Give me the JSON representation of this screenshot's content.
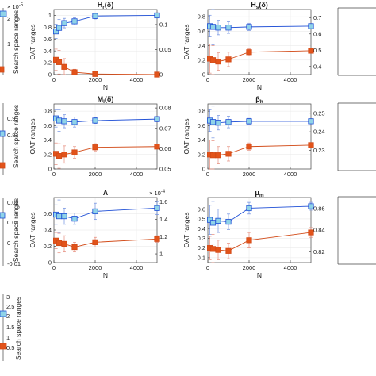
{
  "colors": {
    "oat": "#1f4fd6",
    "oat_fill": "#8fd3e8",
    "ss": "#d24a17",
    "ss_fill": "#e2531a",
    "err_oat": "#6f8fe0",
    "err_ss": "#e58a7a"
  },
  "chart_data": [
    {
      "type": "line",
      "title": "H$_r$(δ)",
      "title_main": "H",
      "title_sub": "r",
      "title_tail": "(δ)",
      "xlabel": "N",
      "ylabel": "OAT ranges",
      "y2label": "Search space ranges",
      "x": [
        100,
        250,
        500,
        1000,
        2000,
        5000
      ],
      "xticks": [
        "0",
        "2000",
        "4000"
      ],
      "xlim": [
        0,
        5000
      ],
      "ylim": [
        0,
        1.1
      ],
      "yticks": [
        "0",
        "0.2",
        "0.4",
        "0.6",
        "0.8",
        "1"
      ],
      "y2lim": [
        0,
        0.13
      ],
      "y2ticks": [
        "0",
        "0.05",
        "0.1"
      ],
      "series": [
        {
          "axis": "left",
          "values": [
            0.73,
            0.79,
            0.87,
            0.9,
            0.99,
            1.0
          ],
          "err": [
            0.12,
            0.14,
            0.08,
            0.06,
            0.05,
            0.02
          ]
        },
        {
          "axis": "left",
          "values": [
            0.25,
            0.21,
            0.13,
            0.04,
            0.01,
            0.0
          ],
          "err": [
            0.18,
            0.2,
            0.14,
            0.05,
            0.02,
            0.01
          ]
        }
      ]
    },
    {
      "type": "line",
      "title_main": "H",
      "title_sub": "s",
      "title_tail": "(δ)",
      "xlabel": "N",
      "ylabel": "OAT ranges",
      "y2label": "",
      "x": [
        100,
        250,
        500,
        1000,
        2000,
        5000
      ],
      "xticks": [
        "0",
        "2000",
        "4000"
      ],
      "xlim": [
        0,
        5000
      ],
      "ylim": [
        0,
        0.9
      ],
      "yticks": [
        "0",
        "0.2",
        "0.4",
        "0.6",
        "0.8"
      ],
      "y2lim": [
        0.35,
        0.75
      ],
      "y2ticks": [
        "0.4",
        "0.5",
        "0.6",
        "0.7"
      ],
      "series": [
        {
          "axis": "left",
          "values": [
            0.67,
            0.66,
            0.65,
            0.65,
            0.66,
            0.67
          ],
          "err": [
            0.15,
            0.25,
            0.1,
            0.08,
            0.05,
            0.03
          ]
        },
        {
          "axis": "left",
          "values": [
            0.22,
            0.2,
            0.18,
            0.21,
            0.31,
            0.33
          ],
          "err": [
            0.2,
            0.2,
            0.12,
            0.1,
            0.05,
            0.03
          ]
        }
      ]
    },
    {
      "type": "line",
      "title_main": "M",
      "title_sub": "l",
      "title_tail": "(δ)",
      "xlabel": "",
      "ylabel": "OAT ranges",
      "y2label": "Search space ranges",
      "x": [
        100,
        250,
        500,
        1000,
        2000,
        5000
      ],
      "xticks": [
        "0",
        "2000",
        "4000"
      ],
      "xlim": [
        0,
        5000
      ],
      "ylim": [
        0,
        0.9
      ],
      "yticks": [
        "0",
        "0.2",
        "0.4",
        "0.6",
        "0.8"
      ],
      "y2lim": [
        0.05,
        0.082
      ],
      "y2ticks": [
        "0.05",
        "0.06",
        "0.07",
        "0.08"
      ],
      "series": [
        {
          "axis": "left",
          "values": [
            0.7,
            0.67,
            0.66,
            0.65,
            0.67,
            0.69
          ],
          "err": [
            0.12,
            0.15,
            0.09,
            0.07,
            0.04,
            0.03
          ]
        },
        {
          "axis": "left",
          "values": [
            0.21,
            0.18,
            0.2,
            0.23,
            0.3,
            0.31
          ],
          "err": [
            0.15,
            0.17,
            0.12,
            0.08,
            0.05,
            0.03
          ]
        }
      ]
    },
    {
      "type": "line",
      "title_main": "β",
      "title_sub": "h",
      "title_tail": "",
      "xlabel": "",
      "ylabel": "OAT ranges",
      "y2label": "",
      "x": [
        100,
        250,
        500,
        1000,
        2000,
        5000
      ],
      "xticks": [
        "0",
        "2000",
        "4000"
      ],
      "xlim": [
        0,
        5000
      ],
      "ylim": [
        0,
        0.9
      ],
      "yticks": [
        "0",
        "0.2",
        "0.4",
        "0.6",
        "0.8"
      ],
      "y2lim": [
        0.22,
        0.255
      ],
      "y2ticks": [
        "0.23",
        "0.24",
        "0.25"
      ],
      "series": [
        {
          "axis": "left",
          "values": [
            0.67,
            0.65,
            0.64,
            0.65,
            0.66,
            0.66
          ],
          "err": [
            0.15,
            0.22,
            0.1,
            0.08,
            0.04,
            0.03
          ]
        },
        {
          "axis": "left",
          "values": [
            0.2,
            0.19,
            0.19,
            0.21,
            0.31,
            0.33
          ],
          "err": [
            0.2,
            0.2,
            0.12,
            0.1,
            0.05,
            0.03
          ]
        }
      ]
    },
    {
      "type": "line",
      "title_main": "Λ",
      "title_sub": "",
      "title_tail": "",
      "xlabel": "N",
      "ylabel": "OAT ranges",
      "y2label": "Search space ranges",
      "x": [
        100,
        250,
        500,
        1000,
        2000,
        5000
      ],
      "xticks": [
        "0",
        "2000",
        "4000"
      ],
      "xlim": [
        0,
        5000
      ],
      "ylim": [
        0,
        0.8
      ],
      "yticks": [
        "0",
        "0.2",
        "0.4",
        "0.6"
      ],
      "y2lim": [
        0.9,
        1.65
      ],
      "y2ticks": [
        "1",
        "1.2",
        "1.4",
        "1.6"
      ],
      "y2exp": "× 10",
      "y2exp_pow": "-4",
      "series": [
        {
          "axis": "left",
          "values": [
            0.59,
            0.57,
            0.57,
            0.54,
            0.63,
            0.67
          ],
          "err": [
            0.12,
            0.2,
            0.1,
            0.07,
            0.1,
            0.08
          ]
        },
        {
          "axis": "left",
          "values": [
            0.27,
            0.24,
            0.23,
            0.19,
            0.25,
            0.29
          ],
          "err": [
            0.1,
            0.12,
            0.1,
            0.06,
            0.06,
            0.04
          ]
        }
      ]
    },
    {
      "type": "line",
      "title_main": "μ",
      "title_sub": "m",
      "title_tail": "",
      "xlabel": "N",
      "ylabel": "OAT ranges",
      "y2label": "",
      "x": [
        100,
        250,
        500,
        1000,
        2000,
        5000
      ],
      "xticks": [
        "0",
        "2000",
        "4000"
      ],
      "xlim": [
        0,
        5000
      ],
      "ylim": [
        0.05,
        0.72
      ],
      "yticks": [
        "0.1",
        "0.2",
        "0.3",
        "0.4",
        "0.5",
        "0.6"
      ],
      "y2lim": [
        0.81,
        0.87
      ],
      "y2ticks": [
        "0.82",
        "0.84",
        "0.86"
      ],
      "series": [
        {
          "axis": "left",
          "values": [
            0.49,
            0.46,
            0.48,
            0.47,
            0.61,
            0.63
          ],
          "err": [
            0.15,
            0.22,
            0.12,
            0.08,
            0.06,
            0.04
          ]
        },
        {
          "axis": "left",
          "values": [
            0.2,
            0.19,
            0.18,
            0.17,
            0.28,
            0.36
          ],
          "err": [
            0.12,
            0.15,
            0.1,
            0.08,
            0.08,
            0.05
          ]
        }
      ]
    }
  ],
  "fragments": {
    "tl_exp": "× 10",
    "tl_exp_pow": "-5",
    "tl_ticks": [
      "2",
      "1"
    ],
    "ml_ticks": [
      "0.9",
      "0.8"
    ],
    "bl_ticks": [
      "0.02",
      "0.01",
      "0",
      "-0.01"
    ],
    "leg_ticks": [
      "3",
      "2.5",
      "2",
      "1.5",
      "1",
      "0.5"
    ],
    "edge_label": "Search space ranges"
  }
}
